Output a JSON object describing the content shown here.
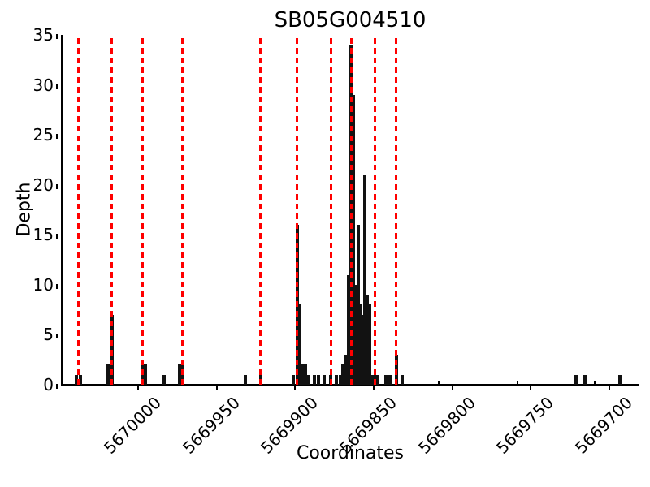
{
  "figure": {
    "title": "SB05G004510",
    "xlabel": "Coordinates",
    "ylabel": "Depth"
  },
  "chart_data": {
    "type": "bar",
    "title": "SB05G004510",
    "xlabel": "Coordinates",
    "ylabel": "Depth",
    "grid": false,
    "legend": null,
    "x_axis": {
      "reversed": true,
      "left_value": 5670048,
      "right_value": 5669682,
      "ticks": [
        5670000,
        5669950,
        5669900,
        5669850,
        5669800,
        5669750,
        5669700
      ]
    },
    "y_axis": {
      "min": 0,
      "max": 35,
      "ticks": [
        0,
        5,
        10,
        15,
        20,
        25,
        30,
        35
      ]
    },
    "bar_color": "#121212",
    "red_line_color": "#ff0000",
    "red_dashed_lines_x": [
      5670038,
      5670016.5,
      5669997,
      5669971.5,
      5669922,
      5669899,
      5669877,
      5669864,
      5669849,
      5669836
    ],
    "bars": [
      [
        5670039,
        1
      ],
      [
        5670036.5,
        1
      ],
      [
        5670019,
        2
      ],
      [
        5670016.5,
        7
      ],
      [
        5669997.5,
        2
      ],
      [
        5669995.5,
        2
      ],
      [
        5669983.5,
        1
      ],
      [
        5669973.5,
        2
      ],
      [
        5669971.5,
        2
      ],
      [
        5669931.5,
        1
      ],
      [
        5669922,
        1
      ],
      [
        5669901,
        1
      ],
      [
        5669898.5,
        16
      ],
      [
        5669897,
        8
      ],
      [
        5669895,
        2
      ],
      [
        5669893.5,
        2
      ],
      [
        5669891.5,
        1
      ],
      [
        5669887.5,
        1
      ],
      [
        5669885,
        1
      ],
      [
        5669881.5,
        1
      ],
      [
        5669877.5,
        1
      ],
      [
        5669874,
        1
      ],
      [
        5669871,
        1
      ],
      [
        5669869.5,
        2
      ],
      [
        5669868,
        3
      ],
      [
        5669866,
        11
      ],
      [
        5669864.5,
        34
      ],
      [
        5669863,
        29
      ],
      [
        5669861.5,
        10
      ],
      [
        5669860,
        16
      ],
      [
        5669858.5,
        8
      ],
      [
        5669857,
        7
      ],
      [
        5669855.5,
        21
      ],
      [
        5669854,
        9
      ],
      [
        5669852.5,
        8
      ],
      [
        5669851,
        1
      ],
      [
        5669849.5,
        1
      ],
      [
        5669848,
        1
      ],
      [
        5669842.5,
        1
      ],
      [
        5669839.5,
        1
      ],
      [
        5669835.5,
        3
      ],
      [
        5669832,
        1
      ],
      [
        5669721.5,
        1
      ],
      [
        5669715.5,
        1
      ],
      [
        5669693.5,
        1
      ]
    ],
    "tiny_marks_x": [
      5669808.5,
      5669758.5,
      5669709.5
    ],
    "tiny_mark_height": 0.4
  }
}
